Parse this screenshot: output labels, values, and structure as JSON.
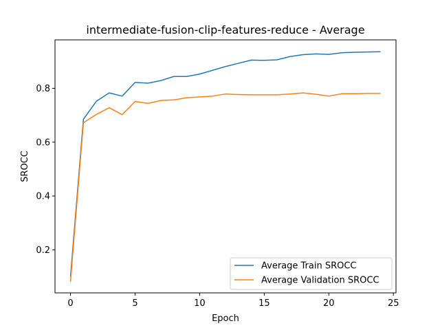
{
  "chart_data": {
    "type": "line",
    "title": "intermediate-fusion-clip-features-reduce - Average",
    "xlabel": "Epoch",
    "ylabel": "SROCC",
    "xlim": [
      -1.2,
      25.2
    ],
    "ylim": [
      0.04,
      0.98
    ],
    "xticks": [
      0,
      5,
      10,
      15,
      20,
      25
    ],
    "yticks": [
      0.2,
      0.4,
      0.6,
      0.8
    ],
    "ytick_labels": [
      "0.2",
      "0.4",
      "0.6",
      "0.8"
    ],
    "grid": false,
    "legend_position": "lower-right",
    "x": [
      0,
      1,
      2,
      3,
      4,
      5,
      6,
      7,
      8,
      9,
      10,
      11,
      12,
      13,
      14,
      15,
      16,
      17,
      18,
      19,
      20,
      21,
      22,
      23,
      24
    ],
    "series": [
      {
        "name": "Average Train SROCC",
        "color": "#1f77b4",
        "values": [
          0.1,
          0.685,
          0.752,
          0.783,
          0.771,
          0.822,
          0.819,
          0.829,
          0.844,
          0.844,
          0.853,
          0.867,
          0.881,
          0.893,
          0.905,
          0.904,
          0.906,
          0.918,
          0.925,
          0.928,
          0.926,
          0.932,
          0.934,
          0.935,
          0.936
        ]
      },
      {
        "name": "Average Validation SROCC",
        "color": "#ff7f0e",
        "values": [
          0.082,
          0.672,
          0.703,
          0.728,
          0.702,
          0.751,
          0.744,
          0.755,
          0.757,
          0.765,
          0.768,
          0.771,
          0.779,
          0.777,
          0.776,
          0.776,
          0.776,
          0.779,
          0.783,
          0.778,
          0.771,
          0.78,
          0.78,
          0.781,
          0.781
        ]
      }
    ]
  }
}
